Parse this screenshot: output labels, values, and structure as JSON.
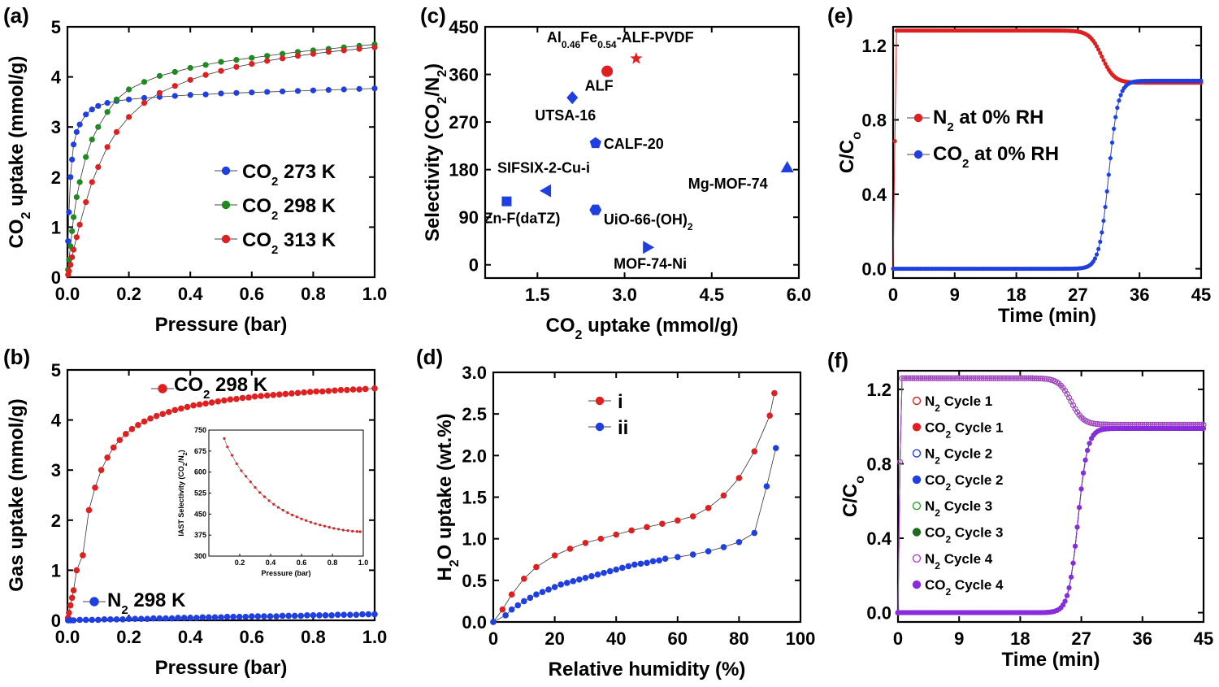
{
  "chart_data": [
    {
      "id": "a",
      "panel_label": "(a)",
      "type": "scatter",
      "xlabel": "Pressure (bar)",
      "ylabel": "CO2 uptake (mmol/g)",
      "xlim": [
        0,
        1.0
      ],
      "ylim": [
        0,
        5
      ],
      "xticks": [
        "0.0",
        "0.2",
        "0.4",
        "0.6",
        "0.8",
        "1.0"
      ],
      "yticks": [
        "0",
        "1",
        "2",
        "3",
        "4",
        "5"
      ],
      "legend_position": "center-right",
      "series": [
        {
          "name": "CO2 273 K",
          "label_main": "CO",
          "label_sub": "2",
          "label_rest": " 273 K",
          "color": "#1f3fe0",
          "x": [
            0.002,
            0.005,
            0.01,
            0.015,
            0.02,
            0.03,
            0.04,
            0.06,
            0.08,
            0.1,
            0.13,
            0.16,
            0.2,
            0.25,
            0.3,
            0.35,
            0.4,
            0.45,
            0.5,
            0.55,
            0.6,
            0.65,
            0.7,
            0.75,
            0.8,
            0.85,
            0.9,
            0.95,
            1.0
          ],
          "y": [
            0.72,
            1.3,
            2.0,
            2.35,
            2.65,
            2.9,
            3.05,
            3.25,
            3.35,
            3.42,
            3.48,
            3.52,
            3.55,
            3.58,
            3.6,
            3.62,
            3.64,
            3.65,
            3.67,
            3.68,
            3.69,
            3.7,
            3.71,
            3.72,
            3.73,
            3.74,
            3.75,
            3.76,
            3.77
          ]
        },
        {
          "name": "CO2 298 K",
          "label_main": "CO",
          "label_sub": "2",
          "label_rest": " 298 K",
          "color": "#1f8a1f",
          "x": [
            0.002,
            0.005,
            0.01,
            0.015,
            0.02,
            0.03,
            0.04,
            0.06,
            0.08,
            0.1,
            0.13,
            0.16,
            0.2,
            0.25,
            0.3,
            0.35,
            0.4,
            0.45,
            0.5,
            0.55,
            0.6,
            0.65,
            0.7,
            0.75,
            0.8,
            0.85,
            0.9,
            0.95,
            1.0
          ],
          "y": [
            0.15,
            0.35,
            0.62,
            0.92,
            1.2,
            1.6,
            1.9,
            2.4,
            2.75,
            3.0,
            3.3,
            3.55,
            3.75,
            3.9,
            4.02,
            4.1,
            4.18,
            4.24,
            4.3,
            4.34,
            4.38,
            4.42,
            4.46,
            4.5,
            4.53,
            4.56,
            4.59,
            4.62,
            4.65
          ]
        },
        {
          "name": "CO2 313 K",
          "label_main": "CO",
          "label_sub": "2",
          "label_rest": " 313 K",
          "color": "#e02020",
          "x": [
            0.002,
            0.005,
            0.01,
            0.015,
            0.02,
            0.03,
            0.04,
            0.06,
            0.08,
            0.1,
            0.13,
            0.16,
            0.2,
            0.25,
            0.3,
            0.35,
            0.4,
            0.45,
            0.5,
            0.55,
            0.6,
            0.65,
            0.7,
            0.75,
            0.8,
            0.85,
            0.9,
            0.95,
            1.0
          ],
          "y": [
            0.05,
            0.12,
            0.25,
            0.4,
            0.55,
            0.8,
            1.05,
            1.5,
            1.9,
            2.2,
            2.6,
            2.9,
            3.2,
            3.48,
            3.68,
            3.82,
            3.94,
            4.04,
            4.12,
            4.2,
            4.26,
            4.32,
            4.37,
            4.42,
            4.46,
            4.5,
            4.53,
            4.56,
            4.59
          ]
        }
      ]
    },
    {
      "id": "b",
      "panel_label": "(b)",
      "type": "scatter",
      "xlabel": "Pressure (bar)",
      "ylabel": "Gas uptake (mmol/g)",
      "xlim": [
        0,
        1.0
      ],
      "ylim": [
        0,
        5
      ],
      "xticks": [
        "0.0",
        "0.2",
        "0.4",
        "0.6",
        "0.8",
        "1.0"
      ],
      "yticks": [
        "0",
        "1",
        "2",
        "3",
        "4",
        "5"
      ],
      "series": [
        {
          "name": "CO2 298 K",
          "label_main": "CO",
          "label_sub": "2",
          "label_rest": " 298 K",
          "color": "#e02020",
          "x": [
            0.002,
            0.005,
            0.01,
            0.015,
            0.02,
            0.03,
            0.05,
            0.07,
            0.09,
            0.11,
            0.13,
            0.15,
            0.17,
            0.19,
            0.21,
            0.23,
            0.25,
            0.27,
            0.29,
            0.31,
            0.33,
            0.35,
            0.37,
            0.39,
            0.41,
            0.43,
            0.45,
            0.47,
            0.49,
            0.51,
            0.53,
            0.55,
            0.57,
            0.59,
            0.61,
            0.63,
            0.65,
            0.67,
            0.69,
            0.71,
            0.73,
            0.75,
            0.77,
            0.79,
            0.81,
            0.83,
            0.85,
            0.87,
            0.89,
            0.91,
            0.93,
            0.95,
            0.97,
            1.0
          ],
          "y": [
            0.05,
            0.15,
            0.3,
            0.45,
            0.6,
            1.0,
            1.3,
            2.2,
            2.65,
            3.0,
            3.25,
            3.45,
            3.6,
            3.72,
            3.82,
            3.9,
            3.97,
            4.03,
            4.08,
            4.12,
            4.16,
            4.2,
            4.23,
            4.26,
            4.29,
            4.31,
            4.33,
            4.35,
            4.37,
            4.39,
            4.41,
            4.42,
            4.44,
            4.45,
            4.47,
            4.48,
            4.49,
            4.5,
            4.51,
            4.52,
            4.53,
            4.54,
            4.55,
            4.56,
            4.57,
            4.57,
            4.58,
            4.59,
            4.6,
            4.6,
            4.61,
            4.61,
            4.62,
            4.63
          ]
        },
        {
          "name": "N2 298 K",
          "label_main": "N",
          "label_sub": "2",
          "label_rest": " 298 K",
          "color": "#1f3fe0",
          "x": [
            0.002,
            0.01,
            0.02,
            0.04,
            0.06,
            0.08,
            0.1,
            0.12,
            0.14,
            0.16,
            0.18,
            0.2,
            0.22,
            0.24,
            0.26,
            0.28,
            0.3,
            0.32,
            0.34,
            0.36,
            0.38,
            0.4,
            0.42,
            0.44,
            0.46,
            0.48,
            0.5,
            0.52,
            0.54,
            0.56,
            0.58,
            0.6,
            0.62,
            0.64,
            0.66,
            0.68,
            0.7,
            0.72,
            0.74,
            0.76,
            0.78,
            0.8,
            0.82,
            0.84,
            0.86,
            0.88,
            0.9,
            0.92,
            0.94,
            0.96,
            0.98,
            1.0
          ],
          "y": [
            0.0,
            0.0,
            0.0,
            0.01,
            0.01,
            0.01,
            0.01,
            0.02,
            0.02,
            0.02,
            0.02,
            0.03,
            0.03,
            0.03,
            0.03,
            0.04,
            0.04,
            0.04,
            0.04,
            0.05,
            0.05,
            0.05,
            0.05,
            0.06,
            0.06,
            0.06,
            0.06,
            0.07,
            0.07,
            0.07,
            0.07,
            0.08,
            0.08,
            0.08,
            0.08,
            0.08,
            0.09,
            0.09,
            0.09,
            0.09,
            0.1,
            0.1,
            0.1,
            0.1,
            0.1,
            0.11,
            0.11,
            0.11,
            0.11,
            0.12,
            0.12,
            0.12
          ]
        }
      ],
      "inset": {
        "type": "line",
        "xlabel": "Pressure (bar)",
        "ylabel": "IAST Selectivity (CO2/N2)",
        "xlim": [
          0,
          1.0
        ],
        "ylim": [
          300,
          750
        ],
        "xticks": [
          "0.2",
          "0.4",
          "0.6",
          "0.8",
          "1.0"
        ],
        "yticks": [
          "300",
          "375",
          "450",
          "525",
          "600",
          "675",
          "750"
        ],
        "color": "#e02020",
        "x": [
          0.1,
          0.12,
          0.15,
          0.18,
          0.21,
          0.24,
          0.27,
          0.3,
          0.33,
          0.36,
          0.39,
          0.42,
          0.45,
          0.48,
          0.51,
          0.54,
          0.57,
          0.6,
          0.63,
          0.66,
          0.69,
          0.72,
          0.75,
          0.78,
          0.81,
          0.84,
          0.87,
          0.9,
          0.93,
          0.96,
          0.98
        ],
        "y": [
          720,
          690,
          660,
          630,
          605,
          585,
          565,
          545,
          527,
          512,
          498,
          485,
          474,
          464,
          455,
          447,
          440,
          433,
          427,
          421,
          416,
          411,
          407,
          403,
          399,
          396,
          393,
          391,
          389,
          388,
          387
        ]
      }
    },
    {
      "id": "c",
      "panel_label": "(c)",
      "type": "scatter",
      "xlabel": "CO2 uptake (mmol/g)",
      "ylabel": "Selectivity (CO2/N2)",
      "xlim": [
        0.6,
        6.0
      ],
      "ylim": [
        -25,
        450
      ],
      "xticks": [
        "1.5",
        "3.0",
        "4.5",
        "6.0"
      ],
      "yticks": [
        "0",
        "90",
        "180",
        "270",
        "360",
        "450"
      ],
      "points": [
        {
          "label": "Al0.46Fe0.54-ALF-PVDF",
          "x": 3.2,
          "y": 390,
          "marker": "star",
          "color": "#e02020"
        },
        {
          "label": "ALF",
          "x": 2.7,
          "y": 366,
          "marker": "circle",
          "color": "#e02020"
        },
        {
          "label": "UTSA-16",
          "x": 2.1,
          "y": 316,
          "marker": "diamond",
          "color": "#1f3fe0"
        },
        {
          "label": "CALF-20",
          "x": 2.5,
          "y": 230,
          "marker": "pentagon",
          "color": "#1f3fe0"
        },
        {
          "label": "SIFSIX-2-Cu-i",
          "x": 1.65,
          "y": 140,
          "marker": "tri-left",
          "color": "#1f3fe0"
        },
        {
          "label": "Mg-MOF-74",
          "x": 5.8,
          "y": 184,
          "marker": "tri-up",
          "color": "#1f3fe0"
        },
        {
          "label": "Zn-F(daTZ)",
          "x": 0.97,
          "y": 120,
          "marker": "square",
          "color": "#1f3fe0"
        },
        {
          "label": "UiO-66-(OH)2",
          "x": 2.5,
          "y": 104,
          "marker": "hexagon",
          "color": "#1f3fe0"
        },
        {
          "label": "MOF-74-Ni",
          "x": 3.4,
          "y": 33,
          "marker": "tri-right",
          "color": "#1f3fe0"
        }
      ]
    },
    {
      "id": "d",
      "panel_label": "(d)",
      "type": "scatter",
      "xlabel": "Relative humidity (%)",
      "ylabel": "H2O uptake (wt.%)",
      "xlim": [
        0,
        100
      ],
      "ylim": [
        0,
        3.0
      ],
      "xticks": [
        "0",
        "20",
        "40",
        "60",
        "80",
        "100"
      ],
      "yticks": [
        "0.0",
        "0.5",
        "1.0",
        "1.5",
        "2.0",
        "2.5",
        "3.0"
      ],
      "series": [
        {
          "name": "i",
          "color": "#e02020",
          "x": [
            0,
            3,
            6,
            10,
            14,
            20,
            25,
            30,
            35,
            40,
            45,
            50,
            55,
            60,
            65,
            70,
            75,
            80,
            85,
            90,
            91.5
          ],
          "y": [
            0,
            0.15,
            0.33,
            0.52,
            0.66,
            0.8,
            0.88,
            0.95,
            1.0,
            1.05,
            1.1,
            1.14,
            1.18,
            1.22,
            1.27,
            1.37,
            1.52,
            1.73,
            2.05,
            2.48,
            2.75
          ]
        },
        {
          "name": "ii",
          "color": "#1f3fe0",
          "x": [
            0,
            4,
            6,
            8,
            10,
            12,
            14,
            16,
            18,
            20,
            22,
            24,
            26,
            28,
            30,
            32,
            34,
            36,
            38,
            40,
            42,
            44,
            46,
            48,
            50,
            52,
            54,
            56,
            60,
            65,
            70,
            75,
            80,
            85,
            89,
            92
          ],
          "y": [
            0,
            0.08,
            0.15,
            0.2,
            0.25,
            0.29,
            0.33,
            0.36,
            0.39,
            0.42,
            0.45,
            0.47,
            0.49,
            0.51,
            0.53,
            0.55,
            0.57,
            0.59,
            0.61,
            0.63,
            0.65,
            0.67,
            0.69,
            0.7,
            0.71,
            0.73,
            0.74,
            0.76,
            0.78,
            0.81,
            0.85,
            0.9,
            0.96,
            1.07,
            1.63,
            2.09
          ]
        }
      ]
    },
    {
      "id": "e",
      "panel_label": "(e)",
      "type": "line",
      "xlabel": "Time (min)",
      "ylabel": "C/Co",
      "xlim": [
        0,
        45
      ],
      "ylim": [
        -0.05,
        1.3
      ],
      "xticks": [
        "0",
        "9",
        "18",
        "27",
        "36",
        "45"
      ],
      "yticks": [
        "0.0",
        "0.4",
        "0.8",
        "1.2"
      ],
      "series": [
        {
          "name": "N2 at 0% RH",
          "label_main": "N",
          "label_sub": "2",
          "label_rest": " at 0% RH",
          "color": "#e02020",
          "kind": "n2",
          "t_break": 30.5,
          "plateau": 1.28,
          "final": 1.0
        },
        {
          "name": "CO2 at 0% RH",
          "label_main": "CO",
          "label_sub": "2",
          "label_rest": " at 0% RH",
          "color": "#1f3fe0",
          "kind": "co2",
          "t_break": 31.5,
          "plateau": 0.0,
          "final": 1.01
        }
      ]
    },
    {
      "id": "f",
      "panel_label": "(f)",
      "type": "line",
      "xlabel": "Time (min)",
      "ylabel": "C/Co",
      "xlim": [
        0,
        45
      ],
      "ylim": [
        -0.05,
        1.3
      ],
      "xticks": [
        "0",
        "9",
        "18",
        "27",
        "36",
        "45"
      ],
      "yticks": [
        "0.0",
        "0.4",
        "0.8",
        "1.2"
      ],
      "series": [
        {
          "name": "N2 Cycle 1",
          "label_main": "N",
          "label_sub": "2",
          "label_rest": " Cycle 1",
          "color": "#e02020",
          "open": true,
          "kind": "n2",
          "t_break": 25.5,
          "plateau": 1.26,
          "final": 1.01
        },
        {
          "name": "CO2 Cycle 1",
          "label_main": "CO",
          "label_sub": "2",
          "label_rest": " Cycle 1",
          "color": "#e02020",
          "open": false,
          "kind": "co2",
          "t_break": 26.5,
          "plateau": 0.0,
          "final": 0.99
        },
        {
          "name": "N2 Cycle 2",
          "label_main": "N",
          "label_sub": "2",
          "label_rest": " Cycle 2",
          "color": "#1f3fe0",
          "open": true,
          "kind": "n2",
          "t_break": 25.5,
          "plateau": 1.26,
          "final": 1.01
        },
        {
          "name": "CO2 Cycle 2",
          "label_main": "CO",
          "label_sub": "2",
          "label_rest": " Cycle 2",
          "color": "#1f3fe0",
          "open": false,
          "kind": "co2",
          "t_break": 26.5,
          "plateau": 0.0,
          "final": 0.99
        },
        {
          "name": "N2 Cycle 3",
          "label_main": "N",
          "label_sub": "2",
          "label_rest": " Cycle 3",
          "color": "#2ea02e",
          "open": true,
          "kind": "n2",
          "t_break": 25.5,
          "plateau": 1.26,
          "final": 1.01
        },
        {
          "name": "CO2 Cycle 3",
          "label_main": "CO",
          "label_sub": "2",
          "label_rest": " Cycle 3",
          "color": "#1f6a1f",
          "open": false,
          "kind": "co2",
          "t_break": 26.5,
          "plateau": 0.0,
          "final": 0.99
        },
        {
          "name": "N2 Cycle 4",
          "label_main": "N",
          "label_sub": "2",
          "label_rest": " Cycle 4",
          "color": "#b040d0",
          "open": true,
          "kind": "n2",
          "t_break": 25.5,
          "plateau": 1.26,
          "final": 1.01
        },
        {
          "name": "CO2 Cycle 4",
          "label_main": "CO",
          "label_sub": "2",
          "label_rest": " Cycle 4",
          "color": "#8a2be2",
          "open": false,
          "kind": "co2",
          "t_break": 26.5,
          "plateau": 0.0,
          "final": 0.99
        }
      ]
    }
  ]
}
